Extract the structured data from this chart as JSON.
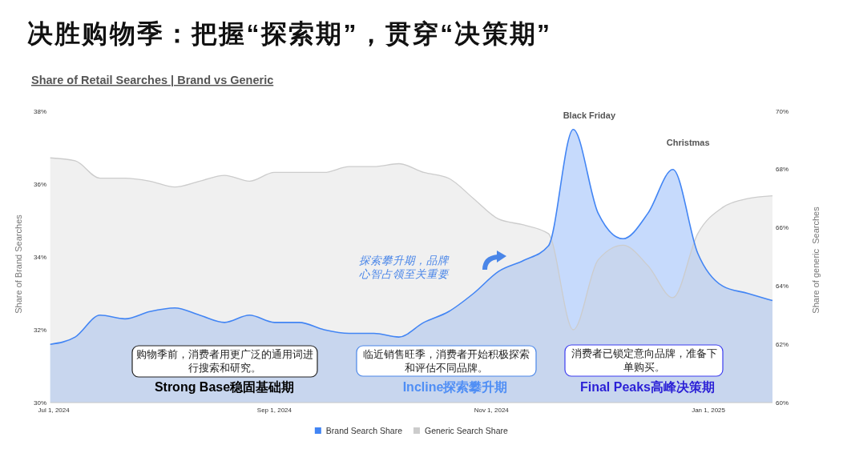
{
  "chart_data": {
    "type": "area",
    "title": "决胜购物季：把握“探索期”，贯穿“决策期”",
    "subtitle": "Share of Retail Searches | Brand vs Generic",
    "ylabel": "Share of Brand Searches",
    "y2label": "Share of generic  Searches",
    "x": [
      "2024-06-30",
      "2024-07-07",
      "2024-07-14",
      "2024-07-21",
      "2024-07-28",
      "2024-08-04",
      "2024-08-11",
      "2024-08-18",
      "2024-08-25",
      "2024-09-01",
      "2024-09-08",
      "2024-09-15",
      "2024-09-22",
      "2024-09-29",
      "2024-10-06",
      "2024-10-13",
      "2024-10-20",
      "2024-10-27",
      "2024-11-03",
      "2024-11-10",
      "2024-11-17",
      "2024-11-24",
      "2024-12-01",
      "2024-12-08",
      "2024-12-15",
      "2024-12-22",
      "2024-12-29",
      "2025-01-05",
      "2025-01-12",
      "2025-01-19"
    ],
    "xlim": [
      "2024-06-30",
      "2025-01-19"
    ],
    "xticks": [
      {
        "value": "2024-07-01",
        "label": "Jul 1, 2024"
      },
      {
        "value": "2024-09-01",
        "label": "Sep 1, 2024"
      },
      {
        "value": "2024-11-01",
        "label": "Nov 1, 2024"
      },
      {
        "value": "2025-01-01",
        "label": "Jan 1, 2025"
      }
    ],
    "ylim": [
      30,
      38
    ],
    "yticks": [
      {
        "value": 30,
        "label": "30%"
      },
      {
        "value": 32,
        "label": "32%"
      },
      {
        "value": 34,
        "label": "34%"
      },
      {
        "value": 36,
        "label": "36%"
      },
      {
        "value": 38,
        "label": "38%"
      }
    ],
    "y2lim": [
      60,
      70
    ],
    "y2ticks": [
      {
        "value": 60,
        "label": "60%"
      },
      {
        "value": 62,
        "label": "62%"
      },
      {
        "value": 64,
        "label": "64%"
      },
      {
        "value": 66,
        "label": "66%"
      },
      {
        "value": 68,
        "label": "68%"
      },
      {
        "value": 70,
        "label": "70%"
      }
    ],
    "series": [
      {
        "name": "Brand Search Share",
        "color": "#4285f4",
        "values": [
          31.6,
          31.8,
          32.4,
          32.3,
          32.5,
          32.6,
          32.4,
          32.2,
          32.4,
          32.2,
          32.2,
          32.0,
          31.9,
          31.9,
          31.8,
          32.2,
          32.5,
          33.0,
          33.6,
          33.9,
          34.3,
          37.5,
          35.2,
          34.5,
          35.2,
          36.4,
          34.1,
          33.2,
          33.0,
          32.8
        ]
      },
      {
        "name": "Generic Search Share",
        "color": "#cccccc",
        "axis": "y2",
        "values": [
          68.4,
          68.3,
          67.7,
          67.7,
          67.6,
          67.4,
          67.6,
          67.8,
          67.6,
          67.9,
          67.9,
          67.9,
          68.1,
          68.1,
          68.2,
          67.9,
          67.7,
          67.0,
          66.3,
          66.1,
          65.8,
          62.5,
          64.9,
          65.4,
          64.7,
          63.6,
          65.8,
          66.7,
          67.0,
          67.1
        ]
      }
    ],
    "legend": "bottom",
    "annotations": [
      {
        "text": "Black Friday",
        "x": "2024-11-24",
        "y": 37.5
      },
      {
        "text": "Christmas",
        "x": "2024-12-22",
        "y": 36.4
      },
      "探索攀升期，品牌心智占领至关重要",
      "购物季前，消费者用更广泛的通用词进行搜索和研究。",
      "临近销售旺季，消费者开始积极探索和评估不同品牌。",
      "消费者已锁定意向品牌，准备下单购买。",
      "Strong Base稳固基础期",
      "Incline探索攀升期",
      "Final Peaks高峰决策期"
    ]
  }
}
